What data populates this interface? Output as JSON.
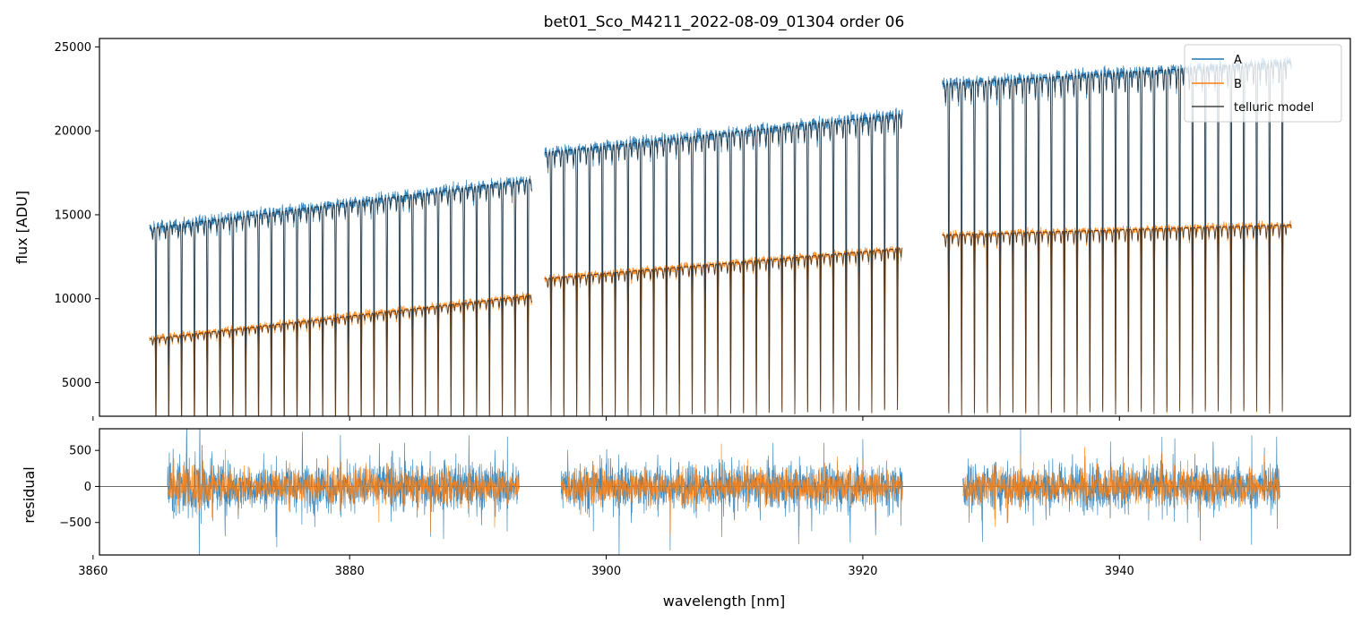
{
  "chart_data": [
    {
      "type": "line",
      "title": "bet01_Sco_M4211_2022-08-09_01304  order 06",
      "ylabel": "flux [ADU]",
      "xlabel": "",
      "xlim": [
        3860.5,
        3958.0
      ],
      "ylim": [
        3000,
        25500
      ],
      "yticks": [
        5000,
        10000,
        15000,
        20000,
        25000
      ],
      "ytick_labels": [
        "5000",
        "10000",
        "15000",
        "20000",
        "25000"
      ],
      "xticks": [
        3860,
        3880,
        3900,
        3920,
        3940
      ],
      "legend_position": "top-right",
      "legend": [
        "A",
        "B",
        "telluric model"
      ],
      "colors": {
        "A": "#1f77b4",
        "B": "#ff7f0e",
        "model": "#222222"
      },
      "segments": [
        {
          "x_start": 3864.4,
          "x_end": 3894.2,
          "A": {
            "start": 14200,
            "end": 17100
          },
          "B": {
            "start": 7600,
            "end": 10200
          },
          "line_spacing_nm": 1.0,
          "line_depth": 0.72
        },
        {
          "x_start": 3895.2,
          "x_end": 3923.1,
          "A": {
            "start": 18700,
            "end": 21000
          },
          "B": {
            "start": 11200,
            "end": 13000
          },
          "line_spacing_nm": 1.0,
          "line_depth": 0.75
        },
        {
          "x_start": 3926.2,
          "x_end": 3953.4,
          "A": {
            "start": 22800,
            "end": 24100
          },
          "B": {
            "start": 13800,
            "end": 14400
          },
          "line_spacing_nm": 1.0,
          "line_depth": 0.78
        }
      ],
      "series": [
        {
          "name": "A",
          "color": "#1f77b4"
        },
        {
          "name": "B",
          "color": "#ff7f0e"
        },
        {
          "name": "telluric model",
          "color": "#222222"
        }
      ]
    },
    {
      "type": "line",
      "title": "",
      "xlabel": "wavelength [nm]",
      "ylabel": "residual",
      "xlim": [
        3860.5,
        3958.0
      ],
      "ylim": [
        -950,
        800
      ],
      "xticks": [
        3860,
        3880,
        3900,
        3920,
        3940
      ],
      "xtick_labels": [
        "3860",
        "3880",
        "3900",
        "3920",
        "3940"
      ],
      "yticks": [
        -500,
        0,
        500
      ],
      "ytick_labels": [
        "−500",
        "0",
        "500"
      ],
      "zero_line": true,
      "segments": [
        {
          "x_start": 3865.8,
          "x_end": 3893.2
        },
        {
          "x_start": 3896.5,
          "x_end": 3923.1
        },
        {
          "x_start": 3927.8,
          "x_end": 3952.5
        }
      ],
      "noise_amplitude": {
        "A": 230,
        "B": 160
      },
      "series": [
        {
          "name": "A",
          "color": "#1f77b4"
        },
        {
          "name": "B",
          "color": "#ff7f0e"
        }
      ]
    }
  ]
}
